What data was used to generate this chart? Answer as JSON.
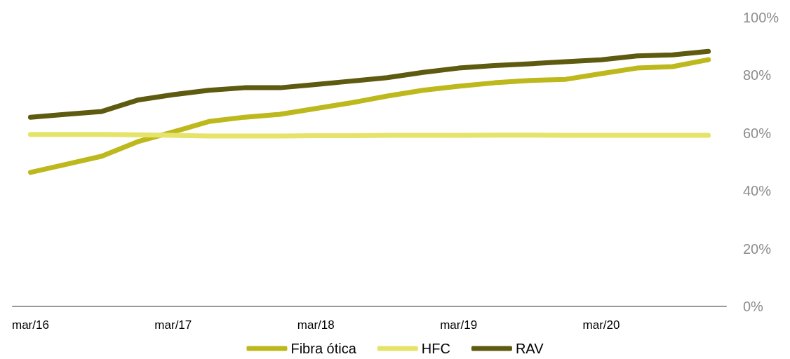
{
  "chart_data": {
    "type": "line",
    "categories": [
      "mar/16",
      null,
      null,
      null,
      "mar/17",
      null,
      null,
      null,
      "mar/18",
      null,
      null,
      null,
      "mar/19",
      null,
      null,
      null,
      "mar/20",
      null,
      null,
      null
    ],
    "series": [
      {
        "name": "Fibra ótica",
        "color": "#bdb81c",
        "values": [
          46.4,
          49.2,
          52,
          57,
          60.4,
          64,
          65.5,
          66.5,
          68.5,
          70.5,
          72.8,
          74.8,
          76.2,
          77.4,
          78.2,
          78.6,
          80.6,
          82.5,
          83,
          85.4
        ]
      },
      {
        "name": "HFC",
        "color": "#e6e36a",
        "values": [
          59.5,
          59.5,
          59.5,
          59.4,
          59.2,
          59,
          59,
          59,
          59.1,
          59.1,
          59.2,
          59.2,
          59.2,
          59.3,
          59.3,
          59.2,
          59.2,
          59.2,
          59.2,
          59.2
        ]
      },
      {
        "name": "RAV",
        "color": "#5e5a0f",
        "values": [
          65.5,
          66.5,
          67.5,
          71.4,
          73.3,
          74.8,
          75.7,
          75.7,
          76.8,
          78,
          79.2,
          81,
          82.5,
          83.4,
          84,
          84.7,
          85.4,
          86.7,
          87.1,
          88.3
        ]
      }
    ],
    "ylim": [
      0,
      100
    ],
    "yticks": [
      {
        "value": 0,
        "label": "0%"
      },
      {
        "value": 20,
        "label": "20%"
      },
      {
        "value": 40,
        "label": "40%"
      },
      {
        "value": 60,
        "label": "60%"
      },
      {
        "value": 80,
        "label": "80%"
      },
      {
        "value": 100,
        "label": "100%"
      }
    ],
    "grid": false,
    "legend": "bottom",
    "marker": "none",
    "line_style": "solid"
  }
}
